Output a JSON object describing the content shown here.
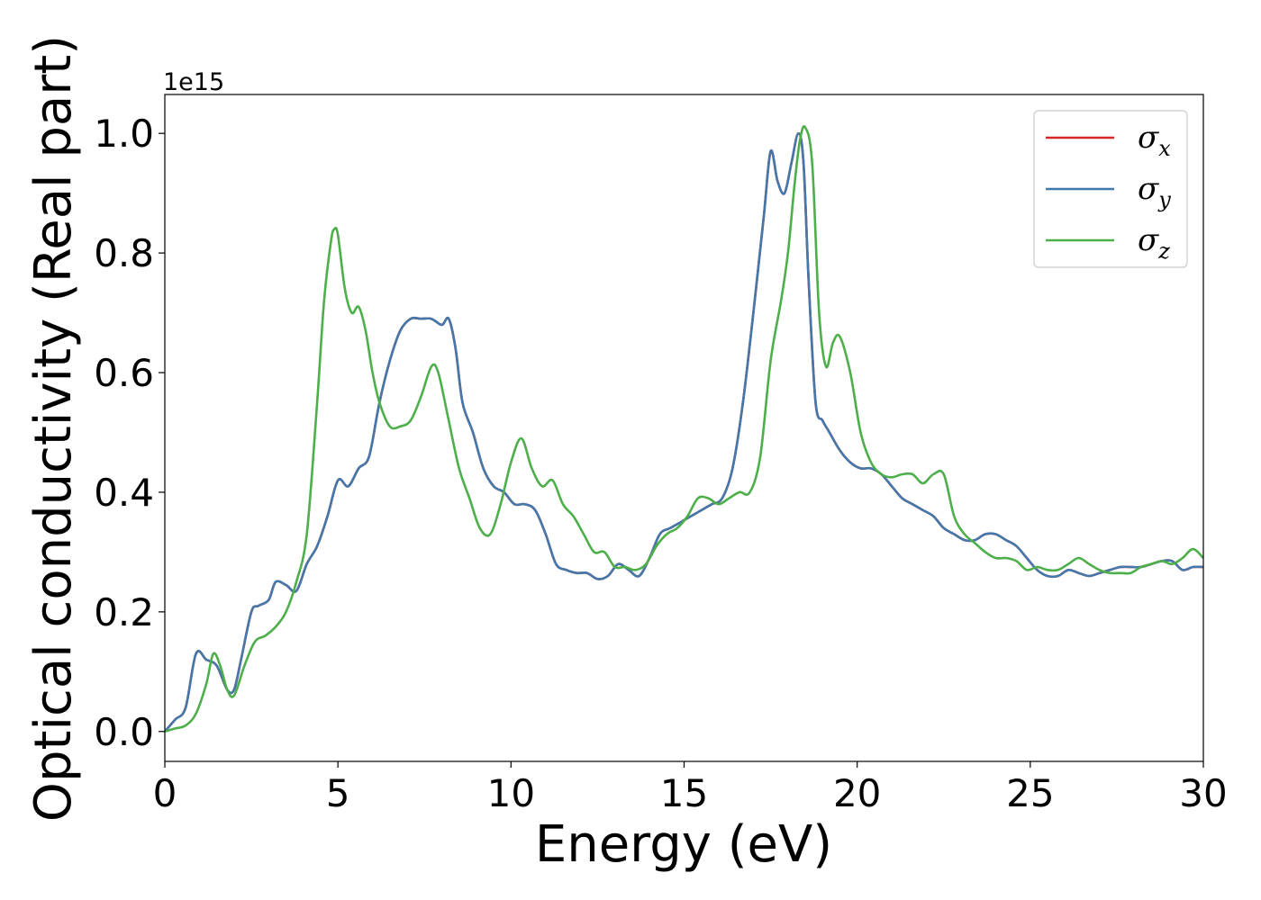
{
  "chart_data": {
    "type": "line",
    "title": "",
    "xlabel": "Energy (eV)",
    "ylabel": "Optical conductivity (Real part)",
    "y_offset_text": "1e15",
    "xlim": [
      0,
      30
    ],
    "ylim": [
      -0.05,
      1.065
    ],
    "xticks": [
      0,
      5,
      10,
      15,
      20,
      25,
      30
    ],
    "yticks": [
      0.0,
      0.2,
      0.4,
      0.6,
      0.8,
      1.0
    ],
    "xtick_labels": [
      "0",
      "5",
      "10",
      "15",
      "20",
      "25",
      "30"
    ],
    "ytick_labels": [
      "0.0",
      "0.2",
      "0.4",
      "0.6",
      "0.8",
      "1.0"
    ],
    "grid": false,
    "legend_position": "top-right",
    "series": [
      {
        "name": "σ",
        "subscript": "x",
        "color": "#d62728",
        "x": [
          0,
          0.3,
          0.6,
          0.9,
          1.2,
          1.5,
          1.8,
          2.0,
          2.2,
          2.5,
          2.7,
          3.0,
          3.2,
          3.5,
          3.8,
          4.1,
          4.4,
          4.7,
          5.0,
          5.3,
          5.6,
          5.9,
          6.2,
          6.5,
          6.8,
          7.1,
          7.4,
          7.7,
          8.0,
          8.2,
          8.4,
          8.6,
          8.9,
          9.2,
          9.5,
          9.8,
          10.1,
          10.4,
          10.7,
          11.0,
          11.3,
          11.6,
          11.9,
          12.2,
          12.5,
          12.8,
          13.1,
          13.4,
          13.7,
          14.0,
          14.3,
          14.6,
          14.9,
          15.2,
          15.5,
          15.8,
          16.1,
          16.4,
          16.7,
          17.0,
          17.3,
          17.5,
          17.7,
          17.9,
          18.1,
          18.3,
          18.45,
          18.6,
          18.8,
          19.0,
          19.2,
          19.5,
          19.8,
          20.1,
          20.4,
          20.7,
          21.0,
          21.3,
          21.6,
          21.9,
          22.2,
          22.5,
          22.8,
          23.1,
          23.4,
          23.7,
          24.0,
          24.3,
          24.6,
          24.9,
          25.2,
          25.5,
          25.8,
          26.1,
          26.4,
          26.7,
          27.0,
          27.3,
          27.6,
          27.9,
          28.2,
          28.5,
          28.8,
          29.1,
          29.4,
          29.7,
          30.0
        ],
        "values": [
          0.0,
          0.02,
          0.04,
          0.13,
          0.12,
          0.11,
          0.07,
          0.07,
          0.12,
          0.2,
          0.21,
          0.22,
          0.25,
          0.245,
          0.235,
          0.28,
          0.31,
          0.36,
          0.42,
          0.41,
          0.44,
          0.46,
          0.55,
          0.62,
          0.67,
          0.69,
          0.69,
          0.69,
          0.68,
          0.69,
          0.64,
          0.55,
          0.5,
          0.44,
          0.41,
          0.4,
          0.38,
          0.38,
          0.37,
          0.33,
          0.28,
          0.27,
          0.265,
          0.265,
          0.255,
          0.26,
          0.28,
          0.27,
          0.26,
          0.29,
          0.33,
          0.34,
          0.35,
          0.36,
          0.37,
          0.38,
          0.39,
          0.44,
          0.55,
          0.7,
          0.86,
          0.97,
          0.92,
          0.9,
          0.95,
          1.0,
          0.95,
          0.75,
          0.55,
          0.52,
          0.5,
          0.47,
          0.45,
          0.44,
          0.44,
          0.43,
          0.41,
          0.39,
          0.38,
          0.37,
          0.36,
          0.34,
          0.33,
          0.32,
          0.32,
          0.33,
          0.33,
          0.32,
          0.31,
          0.29,
          0.27,
          0.26,
          0.26,
          0.27,
          0.265,
          0.26,
          0.265,
          0.27,
          0.275,
          0.275,
          0.275,
          0.28,
          0.285,
          0.285,
          0.27,
          0.275,
          0.275
        ]
      },
      {
        "name": "σ",
        "subscript": "y",
        "color": "#4477aa",
        "x": [
          0,
          0.3,
          0.6,
          0.9,
          1.2,
          1.5,
          1.8,
          2.0,
          2.2,
          2.5,
          2.7,
          3.0,
          3.2,
          3.5,
          3.8,
          4.1,
          4.4,
          4.7,
          5.0,
          5.3,
          5.6,
          5.9,
          6.2,
          6.5,
          6.8,
          7.1,
          7.4,
          7.7,
          8.0,
          8.2,
          8.4,
          8.6,
          8.9,
          9.2,
          9.5,
          9.8,
          10.1,
          10.4,
          10.7,
          11.0,
          11.3,
          11.6,
          11.9,
          12.2,
          12.5,
          12.8,
          13.1,
          13.4,
          13.7,
          14.0,
          14.3,
          14.6,
          14.9,
          15.2,
          15.5,
          15.8,
          16.1,
          16.4,
          16.7,
          17.0,
          17.3,
          17.5,
          17.7,
          17.9,
          18.1,
          18.3,
          18.45,
          18.6,
          18.8,
          19.0,
          19.2,
          19.5,
          19.8,
          20.1,
          20.4,
          20.7,
          21.0,
          21.3,
          21.6,
          21.9,
          22.2,
          22.5,
          22.8,
          23.1,
          23.4,
          23.7,
          24.0,
          24.3,
          24.6,
          24.9,
          25.2,
          25.5,
          25.8,
          26.1,
          26.4,
          26.7,
          27.0,
          27.3,
          27.6,
          27.9,
          28.2,
          28.5,
          28.8,
          29.1,
          29.4,
          29.7,
          30.0
        ],
        "values": [
          0.0,
          0.02,
          0.04,
          0.13,
          0.12,
          0.11,
          0.07,
          0.07,
          0.12,
          0.2,
          0.21,
          0.22,
          0.25,
          0.245,
          0.235,
          0.28,
          0.31,
          0.36,
          0.42,
          0.41,
          0.44,
          0.46,
          0.55,
          0.62,
          0.67,
          0.69,
          0.69,
          0.69,
          0.68,
          0.69,
          0.64,
          0.55,
          0.5,
          0.44,
          0.41,
          0.4,
          0.38,
          0.38,
          0.37,
          0.33,
          0.28,
          0.27,
          0.265,
          0.265,
          0.255,
          0.26,
          0.28,
          0.27,
          0.26,
          0.29,
          0.33,
          0.34,
          0.35,
          0.36,
          0.37,
          0.38,
          0.39,
          0.44,
          0.55,
          0.7,
          0.86,
          0.97,
          0.92,
          0.9,
          0.95,
          1.0,
          0.95,
          0.75,
          0.55,
          0.52,
          0.5,
          0.47,
          0.45,
          0.44,
          0.44,
          0.43,
          0.41,
          0.39,
          0.38,
          0.37,
          0.36,
          0.34,
          0.33,
          0.32,
          0.32,
          0.33,
          0.33,
          0.32,
          0.31,
          0.29,
          0.27,
          0.26,
          0.26,
          0.27,
          0.265,
          0.26,
          0.265,
          0.27,
          0.275,
          0.275,
          0.275,
          0.28,
          0.285,
          0.285,
          0.27,
          0.275,
          0.275
        ]
      },
      {
        "name": "σ",
        "subscript": "z",
        "color": "#4daf4a",
        "x": [
          0,
          0.3,
          0.6,
          0.9,
          1.2,
          1.4,
          1.6,
          1.8,
          2.0,
          2.3,
          2.6,
          2.9,
          3.2,
          3.5,
          3.8,
          4.1,
          4.4,
          4.6,
          4.8,
          4.9,
          5.0,
          5.2,
          5.4,
          5.6,
          5.8,
          6.0,
          6.2,
          6.5,
          6.8,
          7.1,
          7.4,
          7.7,
          7.9,
          8.2,
          8.5,
          8.8,
          9.1,
          9.4,
          9.7,
          10.0,
          10.3,
          10.6,
          10.9,
          11.2,
          11.5,
          11.8,
          12.1,
          12.4,
          12.7,
          13.0,
          13.3,
          13.6,
          13.9,
          14.2,
          14.5,
          14.8,
          15.1,
          15.4,
          15.7,
          16.0,
          16.3,
          16.6,
          16.9,
          17.2,
          17.5,
          17.8,
          18.0,
          18.2,
          18.35,
          18.5,
          18.7,
          18.9,
          19.1,
          19.3,
          19.5,
          19.8,
          20.1,
          20.4,
          20.7,
          21.0,
          21.3,
          21.6,
          21.9,
          22.2,
          22.5,
          22.8,
          23.1,
          23.4,
          23.7,
          24.0,
          24.3,
          24.6,
          24.9,
          25.2,
          25.5,
          25.8,
          26.1,
          26.4,
          26.7,
          27.0,
          27.3,
          27.6,
          27.9,
          28.2,
          28.5,
          28.8,
          29.1,
          29.4,
          29.7,
          30.0
        ],
        "values": [
          0.0,
          0.005,
          0.01,
          0.03,
          0.08,
          0.13,
          0.11,
          0.07,
          0.06,
          0.11,
          0.15,
          0.16,
          0.175,
          0.2,
          0.25,
          0.33,
          0.55,
          0.72,
          0.82,
          0.84,
          0.83,
          0.74,
          0.7,
          0.71,
          0.67,
          0.6,
          0.55,
          0.51,
          0.51,
          0.52,
          0.56,
          0.61,
          0.6,
          0.52,
          0.44,
          0.39,
          0.34,
          0.33,
          0.38,
          0.45,
          0.49,
          0.44,
          0.41,
          0.42,
          0.38,
          0.36,
          0.33,
          0.3,
          0.3,
          0.275,
          0.275,
          0.27,
          0.28,
          0.31,
          0.33,
          0.34,
          0.36,
          0.39,
          0.39,
          0.38,
          0.39,
          0.4,
          0.4,
          0.46,
          0.62,
          0.72,
          0.8,
          0.92,
          0.99,
          1.01,
          0.95,
          0.7,
          0.61,
          0.65,
          0.66,
          0.6,
          0.5,
          0.45,
          0.43,
          0.425,
          0.43,
          0.43,
          0.415,
          0.43,
          0.43,
          0.36,
          0.33,
          0.315,
          0.3,
          0.29,
          0.29,
          0.285,
          0.27,
          0.275,
          0.27,
          0.27,
          0.28,
          0.29,
          0.28,
          0.27,
          0.265,
          0.265,
          0.265,
          0.275,
          0.28,
          0.285,
          0.28,
          0.29,
          0.305,
          0.29
        ]
      }
    ]
  }
}
